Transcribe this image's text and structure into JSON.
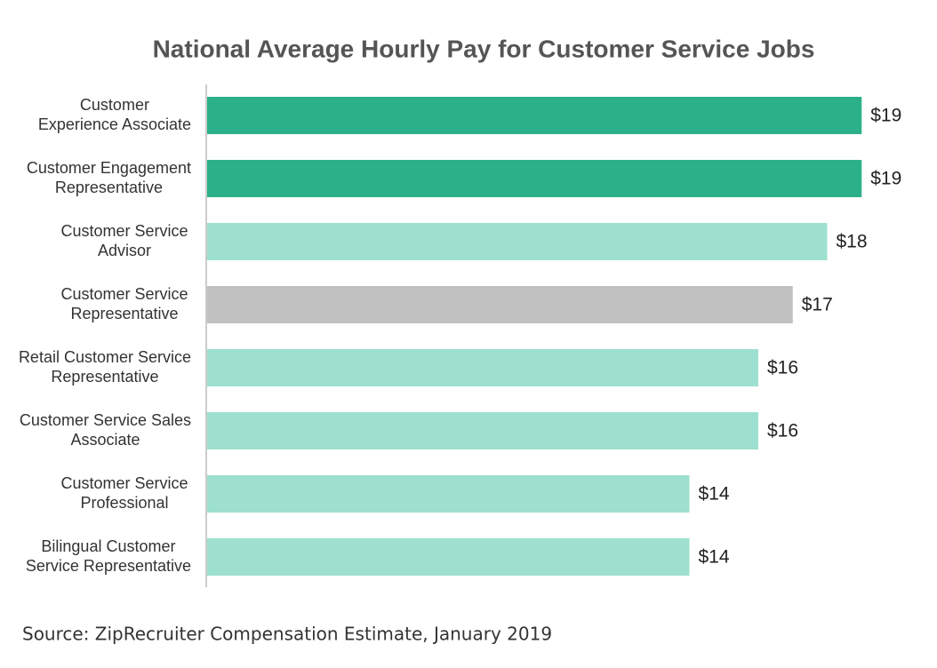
{
  "chart_data": {
    "type": "bar",
    "orientation": "horizontal",
    "title": "National Average Hourly Pay for Customer Service Jobs",
    "categories": [
      "Customer\nExperience Associate",
      "Customer Engagement\nRepresentative",
      "Customer Service\nAdvisor",
      "Customer Service\nRepresentative",
      "Retail Customer Service\nRepresentative",
      "Customer Service Sales\nAssociate",
      "Customer Service\nProfessional",
      "Bilingual Customer\nService Representative"
    ],
    "values": [
      19,
      19,
      18,
      17,
      16,
      16,
      14,
      14
    ],
    "value_labels": [
      "$19",
      "$19",
      "$18",
      "$17",
      "$16",
      "$16",
      "$14",
      "$14"
    ],
    "colors": [
      "#2bb08a",
      "#2bb08a",
      "#9de0cf",
      "#c0c0c0",
      "#9de0cf",
      "#9de0cf",
      "#9de0cf",
      "#9de0cf"
    ],
    "source": "Source: ZipRecruiter Compensation Estimate, January 2019"
  }
}
